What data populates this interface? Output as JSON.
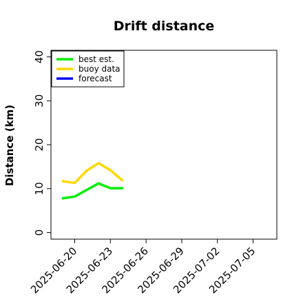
{
  "chart_data": {
    "type": "line",
    "title": "Drift distance",
    "xlabel": "",
    "ylabel": "Distance (km)",
    "x_type": "date",
    "xlim": [
      "2025-06-18",
      "2025-07-07"
    ],
    "ylim": [
      -1.5,
      41.5
    ],
    "x_ticks": [
      "2025-06-20",
      "2025-06-23",
      "2025-06-26",
      "2025-06-29",
      "2025-07-02",
      "2025-07-05"
    ],
    "x_tick_highlight": {
      "2025-06-26": "#228b22"
    },
    "y_ticks": [
      0,
      10,
      20,
      30,
      40
    ],
    "grid": false,
    "legend_position": "top-left",
    "series": [
      {
        "name": "best est.",
        "color": "#00ee00",
        "x": [
          "2025-06-19",
          "2025-06-20",
          "2025-06-21",
          "2025-06-22",
          "2025-06-23",
          "2025-06-24"
        ],
        "values": [
          7.8,
          8.2,
          9.7,
          11.2,
          10.1,
          10.1
        ]
      },
      {
        "name": "buoy data",
        "color": "#ffd700",
        "x": [
          "2025-06-19",
          "2025-06-20",
          "2025-06-21",
          "2025-06-22",
          "2025-06-23",
          "2025-06-24"
        ],
        "values": [
          11.7,
          11.3,
          14.1,
          15.8,
          14.2,
          11.9
        ]
      },
      {
        "name": "forecast",
        "color": "#0000ff",
        "x": [],
        "values": []
      }
    ]
  }
}
